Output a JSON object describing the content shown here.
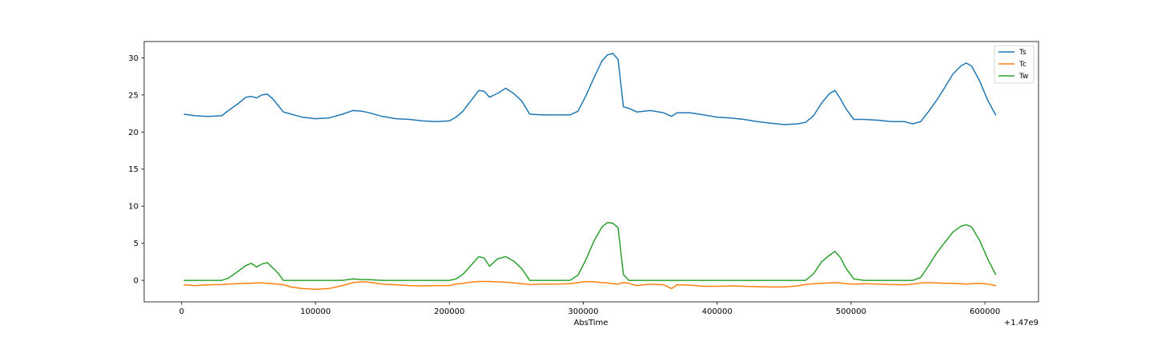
{
  "chart_data": {
    "type": "line",
    "xlabel": "AbsTime",
    "ylabel": "",
    "x_offset_label": "+1.47e9",
    "xlim": [
      -28000,
      640000
    ],
    "ylim": [
      -2.9,
      32.2
    ],
    "x_ticks": [
      0,
      100000,
      200000,
      300000,
      400000,
      500000,
      600000
    ],
    "x_tick_labels": [
      "0",
      "100000",
      "200000",
      "300000",
      "400000",
      "500000",
      "600000"
    ],
    "y_ticks": [
      0,
      5,
      10,
      15,
      20,
      25,
      30
    ],
    "y_tick_labels": [
      "0",
      "5",
      "10",
      "15",
      "20",
      "25",
      "30"
    ],
    "grid": false,
    "legend_position": "top-right",
    "x": [
      2000,
      10000,
      20000,
      30000,
      35000,
      42000,
      48000,
      52000,
      56000,
      60000,
      64000,
      68000,
      72000,
      76000,
      82000,
      90000,
      100000,
      110000,
      120000,
      128000,
      135000,
      140000,
      150000,
      160000,
      170000,
      180000,
      190000,
      200000,
      205000,
      210000,
      216000,
      222000,
      226000,
      230000,
      236000,
      242000,
      248000,
      254000,
      260000,
      270000,
      280000,
      290000,
      296000,
      302000,
      308000,
      314000,
      318000,
      322000,
      326000,
      330000,
      334000,
      340000,
      350000,
      360000,
      366000,
      370000,
      380000,
      390000,
      400000,
      410000,
      420000,
      430000,
      440000,
      450000,
      460000,
      466000,
      472000,
      478000,
      484000,
      488000,
      492000,
      496000,
      502000,
      510000,
      520000,
      530000,
      540000,
      546000,
      552000,
      558000,
      564000,
      570000,
      576000,
      582000,
      586000,
      590000,
      596000,
      602000,
      608000
    ],
    "series": [
      {
        "name": "Ts",
        "color": "#1f77b4",
        "values": [
          22.4,
          22.2,
          22.1,
          22.2,
          22.9,
          23.8,
          24.7,
          24.8,
          24.6,
          25.0,
          25.1,
          24.5,
          23.6,
          22.7,
          22.4,
          22.0,
          21.8,
          21.9,
          22.4,
          22.9,
          22.8,
          22.6,
          22.1,
          21.8,
          21.7,
          21.5,
          21.4,
          21.5,
          22.0,
          22.8,
          24.2,
          25.6,
          25.5,
          24.7,
          25.2,
          25.9,
          25.2,
          24.2,
          22.4,
          22.3,
          22.3,
          22.3,
          22.8,
          24.9,
          27.3,
          29.6,
          30.4,
          30.6,
          29.8,
          23.4,
          23.2,
          22.7,
          22.9,
          22.6,
          22.1,
          22.6,
          22.6,
          22.3,
          22.0,
          21.9,
          21.7,
          21.4,
          21.2,
          21.0,
          21.1,
          21.3,
          22.2,
          23.9,
          25.2,
          25.6,
          24.5,
          23.2,
          21.7,
          21.7,
          21.6,
          21.4,
          21.4,
          21.1,
          21.4,
          22.8,
          24.3,
          26.0,
          27.8,
          28.9,
          29.3,
          28.9,
          26.9,
          24.3,
          22.3
        ]
      },
      {
        "name": "Tc",
        "color": "#ff7f0e",
        "values": [
          -0.6,
          -0.7,
          -0.6,
          -0.55,
          -0.5,
          -0.45,
          -0.4,
          -0.4,
          -0.35,
          -0.35,
          -0.4,
          -0.45,
          -0.5,
          -0.6,
          -0.9,
          -1.1,
          -1.2,
          -1.1,
          -0.7,
          -0.3,
          -0.2,
          -0.25,
          -0.5,
          -0.6,
          -0.7,
          -0.75,
          -0.7,
          -0.7,
          -0.5,
          -0.4,
          -0.25,
          -0.15,
          -0.15,
          -0.15,
          -0.2,
          -0.25,
          -0.35,
          -0.45,
          -0.55,
          -0.5,
          -0.5,
          -0.45,
          -0.3,
          -0.15,
          -0.2,
          -0.3,
          -0.35,
          -0.45,
          -0.5,
          -0.3,
          -0.4,
          -0.7,
          -0.5,
          -0.6,
          -1.1,
          -0.6,
          -0.65,
          -0.8,
          -0.8,
          -0.75,
          -0.8,
          -0.85,
          -0.9,
          -0.9,
          -0.75,
          -0.55,
          -0.45,
          -0.4,
          -0.35,
          -0.3,
          -0.35,
          -0.45,
          -0.5,
          -0.45,
          -0.5,
          -0.55,
          -0.6,
          -0.5,
          -0.35,
          -0.3,
          -0.35,
          -0.4,
          -0.4,
          -0.45,
          -0.5,
          -0.45,
          -0.4,
          -0.5,
          -0.7
        ]
      },
      {
        "name": "Tw",
        "color": "#2ca02c",
        "values": [
          0.0,
          0.0,
          0.0,
          0.0,
          0.3,
          1.2,
          2.0,
          2.3,
          1.8,
          2.2,
          2.4,
          1.7,
          1.0,
          0.0,
          0.0,
          0.0,
          0.0,
          0.0,
          0.0,
          0.2,
          0.1,
          0.1,
          0.0,
          0.0,
          0.0,
          0.0,
          0.0,
          0.0,
          0.2,
          0.8,
          2.0,
          3.2,
          3.0,
          1.9,
          2.9,
          3.2,
          2.6,
          1.6,
          0.0,
          0.0,
          0.0,
          0.0,
          0.7,
          2.8,
          5.3,
          7.2,
          7.8,
          7.7,
          7.1,
          0.8,
          0.0,
          0.0,
          0.0,
          0.0,
          0.0,
          0.0,
          0.0,
          0.0,
          0.0,
          0.0,
          0.0,
          0.0,
          0.0,
          0.0,
          0.0,
          0.0,
          0.9,
          2.5,
          3.4,
          3.9,
          3.1,
          1.7,
          0.2,
          0.0,
          0.0,
          0.0,
          0.0,
          0.0,
          0.4,
          2.0,
          3.7,
          5.1,
          6.5,
          7.3,
          7.5,
          7.2,
          5.4,
          2.9,
          0.8
        ]
      }
    ]
  }
}
